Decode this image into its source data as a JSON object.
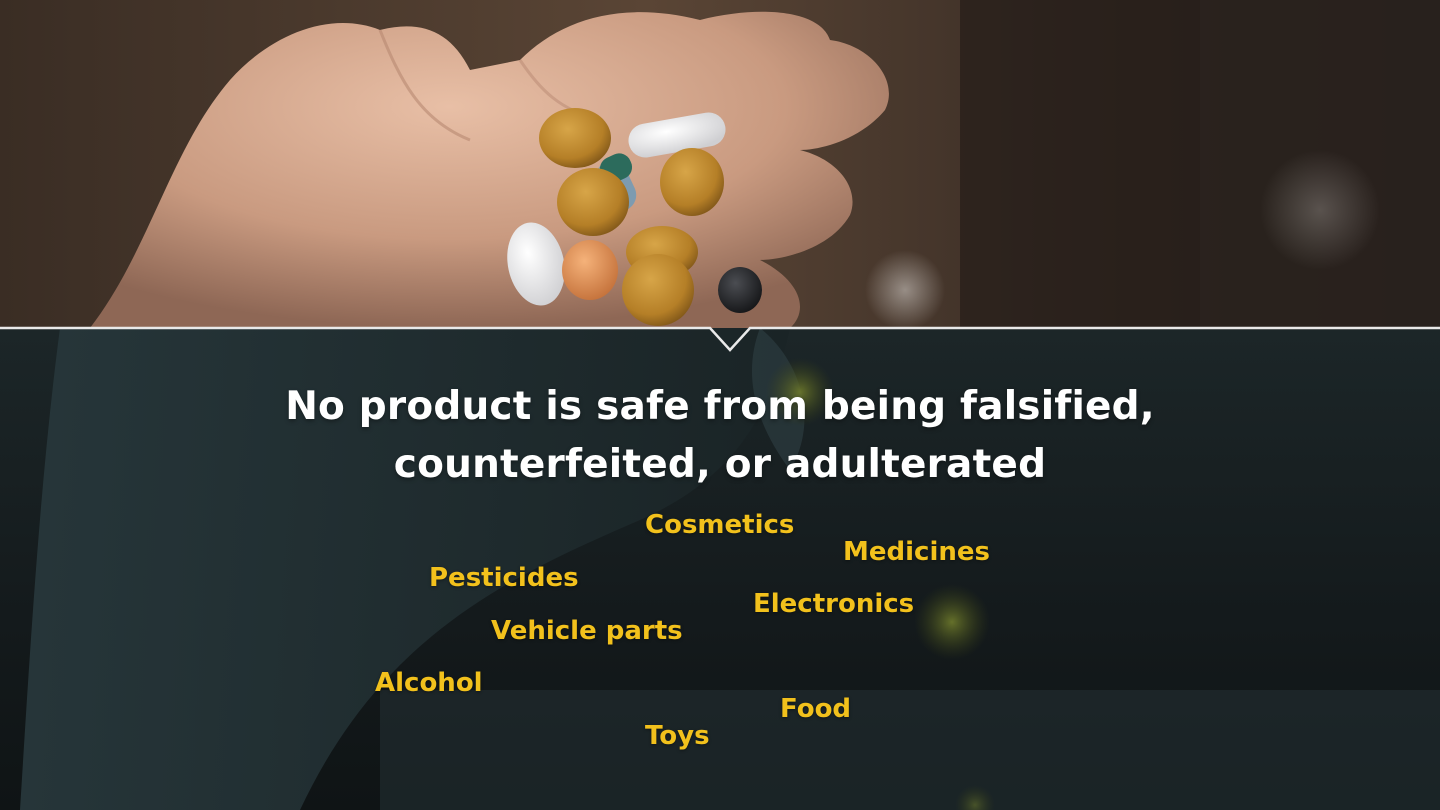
{
  "headline": {
    "line1": "No product is safe from being falsified,",
    "line2": "counterfeited, or adulterated"
  },
  "products": [
    {
      "id": "cosmetics",
      "label": "Cosmetics"
    },
    {
      "id": "medicines",
      "label": "Medicines"
    },
    {
      "id": "pesticides",
      "label": "Pesticides"
    },
    {
      "id": "electronics",
      "label": "Electronics"
    },
    {
      "id": "vehicle-parts",
      "label": "Vehicle parts"
    },
    {
      "id": "alcohol",
      "label": "Alcohol"
    },
    {
      "id": "food",
      "label": "Food"
    },
    {
      "id": "toys",
      "label": "Toys"
    }
  ],
  "colors": {
    "headline": "#ffffff",
    "product_label": "#f2c11c",
    "divider": "#e9e9e9"
  },
  "icons": {
    "photo": "hand-holding-pills-photo"
  }
}
